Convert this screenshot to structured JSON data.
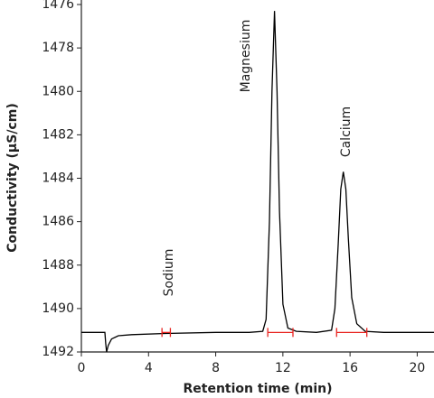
{
  "chart_data": {
    "type": "line",
    "x_label": "Retention time (min)",
    "y_label": "Conductivity (µS/cm)",
    "annotations": [
      "Sodium",
      "Magnesium",
      "Calcium"
    ],
    "x": [
      0,
      1.4,
      1.45,
      1.5,
      1.6,
      1.8,
      2.2,
      3,
      5,
      8,
      10,
      10.8,
      11.0,
      11.2,
      11.35,
      11.5,
      11.65,
      11.8,
      12.0,
      12.3,
      12.8,
      14,
      14.9,
      15.1,
      15.3,
      15.45,
      15.6,
      15.75,
      15.9,
      16.1,
      16.4,
      16.9,
      18,
      21
    ],
    "values": [
      1491.1,
      1491.1,
      1491.6,
      1492,
      1491.7,
      1491.4,
      1491.25,
      1491.2,
      1491.15,
      1491.1,
      1491.1,
      1491.05,
      1490.5,
      1486,
      1480,
      1476.3,
      1480,
      1485.5,
      1489.8,
      1490.9,
      1491.05,
      1491.1,
      1491.0,
      1490,
      1487,
      1484.5,
      1483.7,
      1484.5,
      1486.8,
      1489.5,
      1490.7,
      1491.05,
      1491.1,
      1491.1
    ],
    "color": "#000000",
    "peak_ranges": [
      {
        "start": 4.8,
        "end": 5.3,
        "level": 1491.1
      },
      {
        "start": 11.1,
        "end": 12.6,
        "level": 1491.1
      },
      {
        "start": 15.2,
        "end": 17.0,
        "level": 1491.1
      }
    ],
    "peak_range_color": "#e8231f",
    "xlim": [
      0,
      21
    ],
    "ylim": [
      1492,
      1476
    ],
    "xticks": [
      0,
      4,
      8,
      12,
      16,
      20
    ],
    "yticks": [
      1476,
      1478,
      1480,
      1482,
      1484,
      1486,
      1488,
      1490,
      1492
    ]
  }
}
